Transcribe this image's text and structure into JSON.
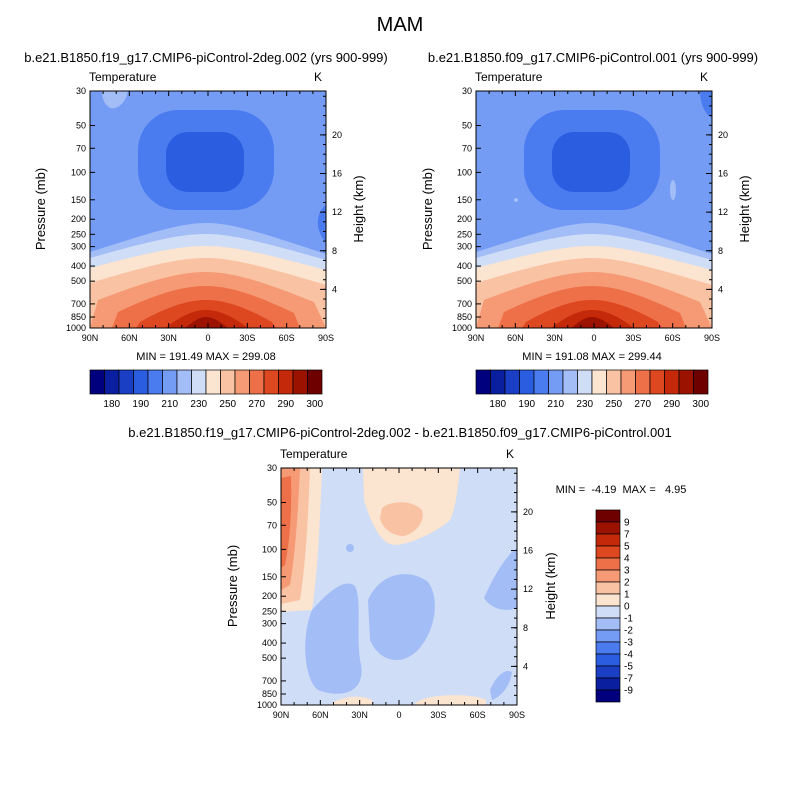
{
  "figure": {
    "title": "MAM",
    "top_left_title": "b.e21.B1850.f19_g17.CMIP6-piControl-2deg.002 (yrs 900-999)",
    "top_right_title": "b.e21.B1850.f09_g17.CMIP6-piControl.001 (yrs 900-999)",
    "bottom_title": "b.e21.B1850.f19_g17.CMIP6-piControl-2deg.002 - b.e21.B1850.f09_g17.CMIP6-piControl.001"
  },
  "colors": {
    "temperature_levels": [
      "#00007f",
      "#0a1fa0",
      "#1a3ec4",
      "#2a5de0",
      "#4a7cf0",
      "#759cf5",
      "#a3bdf7",
      "#d0ddf6",
      "#fbe4d0",
      "#f9c2a3",
      "#f59a75",
      "#ee7048",
      "#de4820",
      "#c42a0a",
      "#9c1200",
      "#6e0000"
    ],
    "difference_levels": [
      "#00007f",
      "#0a1fa0",
      "#1a3ec4",
      "#2a5de0",
      "#4a7cf0",
      "#759cf5",
      "#a3bdf7",
      "#d0ddf6",
      "#fbe4d0",
      "#f9c2a3",
      "#f59a75",
      "#ee7048",
      "#de4820",
      "#c42a0a",
      "#9c1200",
      "#6e0000"
    ]
  },
  "chart_data": [
    {
      "type": "heatmap",
      "title": "b.e21.B1850.f19_g17.CMIP6-piControl-2deg.002 (yrs 900-999)",
      "variable": "Temperature",
      "units": "K",
      "xlabel": "",
      "ylabel": "Pressure (mb)",
      "y2label": "Height (km)",
      "x_ticks": [
        "90N",
        "60N",
        "30N",
        "0",
        "30S",
        "60S",
        "90S"
      ],
      "y_ticks": [
        "30",
        "50",
        "70",
        "100",
        "150",
        "200",
        "250",
        "300",
        "400",
        "500",
        "700",
        "850",
        "1000"
      ],
      "y2_ticks": [
        "4",
        "8",
        "12",
        "16",
        "20"
      ],
      "stats": "MIN = 191.49  MAX = 299.08",
      "min": 191.49,
      "max": 299.08,
      "colorbar_labels": [
        "180",
        "190",
        "210",
        "230",
        "250",
        "270",
        "290",
        "300"
      ]
    },
    {
      "type": "heatmap",
      "title": "b.e21.B1850.f09_g17.CMIP6-piControl.001 (yrs 900-999)",
      "variable": "Temperature",
      "units": "K",
      "xlabel": "",
      "ylabel": "Pressure (mb)",
      "y2label": "Height (km)",
      "x_ticks": [
        "90N",
        "60N",
        "30N",
        "0",
        "30S",
        "60S",
        "90S"
      ],
      "y_ticks": [
        "30",
        "50",
        "70",
        "100",
        "150",
        "200",
        "250",
        "300",
        "400",
        "500",
        "700",
        "850",
        "1000"
      ],
      "y2_ticks": [
        "4",
        "8",
        "12",
        "16",
        "20"
      ],
      "stats": "MIN = 191.08  MAX = 299.44",
      "min": 191.08,
      "max": 299.44,
      "colorbar_labels": [
        "180",
        "190",
        "210",
        "230",
        "250",
        "270",
        "290",
        "300"
      ]
    },
    {
      "type": "heatmap",
      "title": "b.e21.B1850.f19_g17.CMIP6-piControl-2deg.002 - b.e21.B1850.f09_g17.CMIP6-piControl.001",
      "variable": "Temperature",
      "units": "K",
      "xlabel": "",
      "ylabel": "Pressure (mb)",
      "y2label": "Height (km)",
      "x_ticks": [
        "90N",
        "60N",
        "30N",
        "0",
        "30S",
        "60S",
        "90S"
      ],
      "y_ticks": [
        "30",
        "50",
        "70",
        "100",
        "150",
        "200",
        "250",
        "300",
        "400",
        "500",
        "700",
        "850",
        "1000"
      ],
      "y2_ticks": [
        "4",
        "8",
        "12",
        "16",
        "20"
      ],
      "stats": "MIN =  -4.19  MAX =   4.95",
      "min": -4.19,
      "max": 4.95,
      "colorbar_labels": [
        "9",
        "7",
        "5",
        "4",
        "3",
        "2",
        "1",
        "0",
        "-1",
        "-2",
        "-3",
        "-4",
        "-5",
        "-7",
        "-9"
      ]
    }
  ]
}
